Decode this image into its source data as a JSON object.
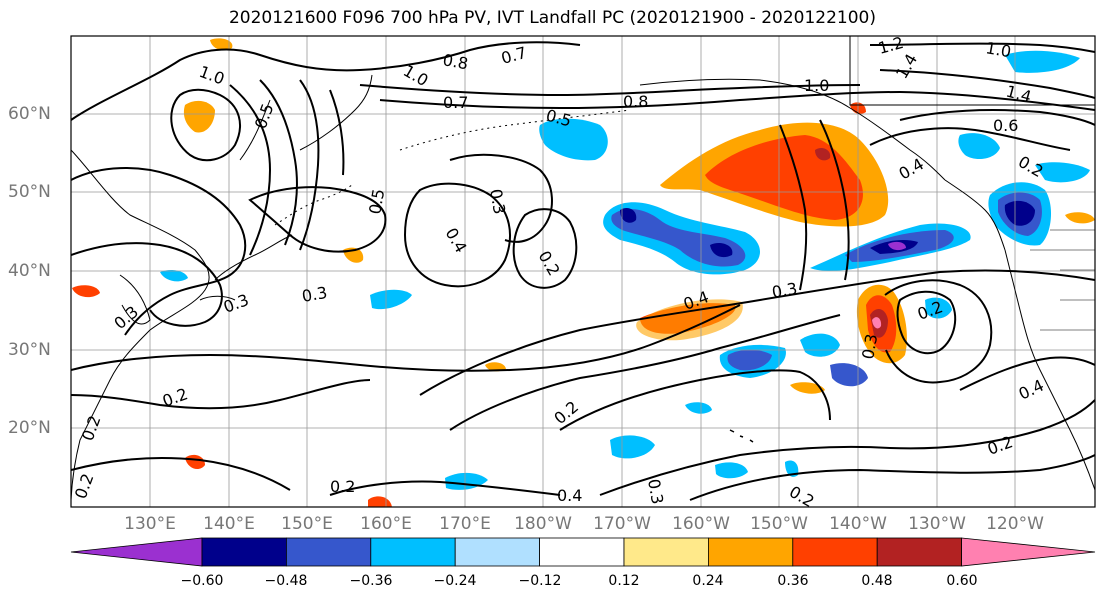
{
  "title": "2020121600 F096 700 hPa PV, IVT Landfall PC (2020121900 - 2020122100)",
  "lat_labels": [
    "60°N",
    "50°N",
    "40°N",
    "30°N",
    "20°N"
  ],
  "lon_labels": [
    "130°E",
    "140°E",
    "150°E",
    "160°E",
    "170°E",
    "180°W",
    "170°W",
    "160°W",
    "150°W",
    "140°W",
    "130°W",
    "120°W"
  ],
  "colorbar": {
    "colors": [
      "#9b30d0",
      "#00008b",
      "#3657cc",
      "#00bfff",
      "#b0e0ff",
      "#ffffff",
      "#ffe98a",
      "#ffa500",
      "#ff4000",
      "#b22222",
      "#ff80b0"
    ],
    "tick_labels": [
      "−0.60",
      "−0.48",
      "−0.36",
      "−0.24",
      "−0.12",
      "0.12",
      "0.24",
      "0.36",
      "0.48",
      "0.60"
    ]
  },
  "contour_labels": [
    "1.0",
    "0.8",
    "0.7",
    "1.0",
    "0.7",
    "0.8",
    "0.5",
    "1.2",
    "1.0",
    "1.4",
    "1.4",
    "1.0",
    "0.6",
    "0.4",
    "0.5",
    "0.3",
    "0.4",
    "0.2",
    "0.4",
    "0.3",
    "0.3",
    "0.3",
    "0.2",
    "0.2",
    "0.2",
    "0.2",
    "0.3",
    "0.4",
    "0.2",
    "0.4",
    "0.3",
    "0.2",
    "0.2",
    "0.2",
    "0.3",
    "0.5",
    "0.2"
  ]
}
